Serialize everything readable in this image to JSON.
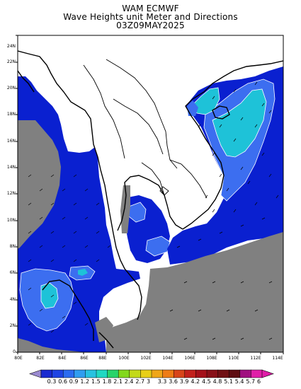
{
  "title": {
    "line1": "WAM ECMWF",
    "line2": "Wave Heights unit Meter and Directions",
    "line3": "03Z09MAY2025"
  },
  "axes": {
    "y_labels": [
      "0",
      "2N",
      "4N",
      "6N",
      "8N",
      "10N",
      "12N",
      "14N",
      "16N",
      "18N",
      "20N",
      "22N",
      "24N"
    ],
    "x_labels": [
      "80E",
      "82E",
      "84E",
      "86E",
      "88E",
      "100E",
      "102E",
      "104E",
      "106E",
      "108E",
      "110E",
      "112E",
      "114E"
    ]
  },
  "colorbar": {
    "labels": [
      "0.3",
      "0.6",
      "0.9",
      "1.2",
      "1.5",
      "1.8",
      "2.1",
      "2.4",
      "2.7",
      "3",
      "3.3",
      "3.6",
      "3.9",
      "4.2",
      "4.5",
      "4.8",
      "5.1",
      "5.4",
      "5.7",
      "6"
    ],
    "colors": [
      "#1a2bd0",
      "#1f44e3",
      "#2b6cf0",
      "#2f9df0",
      "#27c2e0",
      "#1fd8c2",
      "#28d46a",
      "#82d81c",
      "#c3d91a",
      "#e8cf18",
      "#efa619",
      "#ee7c16",
      "#d8451a",
      "#c2201c",
      "#a4101a",
      "#881018",
      "#701014",
      "#5e0e12",
      "#a01080",
      "#e01ea8"
    ]
  },
  "colors": {
    "land": "#ffffff",
    "missing": "#808080",
    "sea_low": "#0a20d0",
    "sea_mid": "#3c6ef0",
    "sea_high": "#1ec2d8"
  }
}
